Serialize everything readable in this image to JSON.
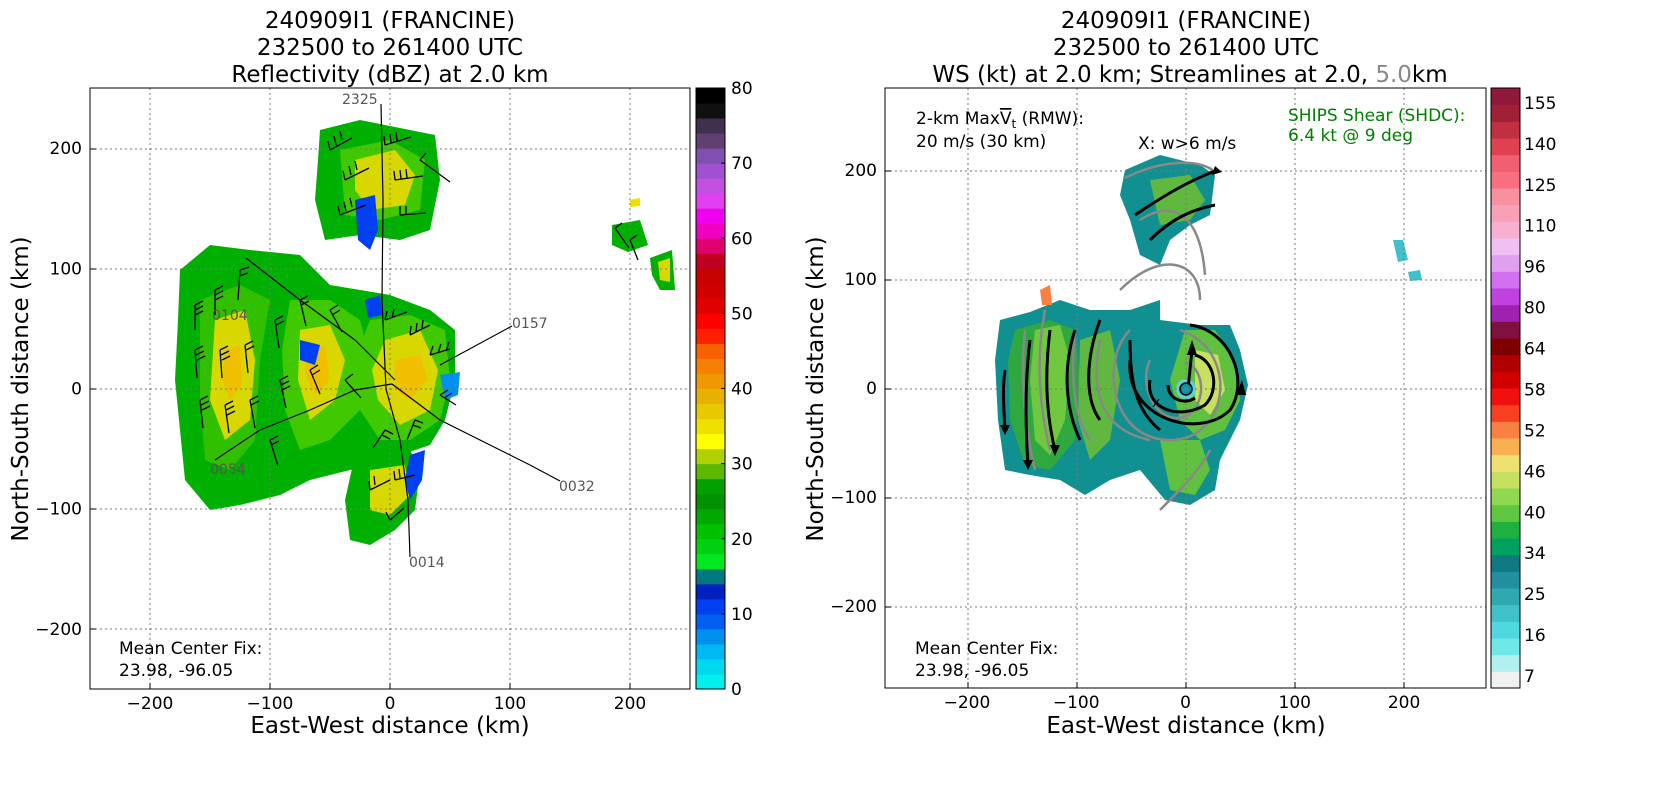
{
  "left_panel": {
    "title_line1": "240909I1 (FRANCINE)",
    "title_line2": "232500 to 261400 UTC",
    "title_line3": "Reflectivity (dBZ) at 2.0 km",
    "xlabel": "East-West distance (km)",
    "ylabel": "North-South distance (km)",
    "fix_line1": "Mean Center Fix:",
    "fix_line2": "23.98, -96.05",
    "track_labels": [
      "2325",
      "0157",
      "0032",
      "0014",
      "0104",
      "0054"
    ]
  },
  "right_panel": {
    "title_line1": "240909I1 (FRANCINE)",
    "title_line2": "232500 to 261400 UTC",
    "title_line3_a": "WS (kt) at 2.0 km; Streamlines at 2.0, ",
    "title_line3_b": "5.0",
    "title_line3_c": "km",
    "xlabel": "East-West distance (km)",
    "ylabel": "North-South distance (km)",
    "vt_line1_a": "2-km Max",
    "vt_line1_b": "V",
    "vt_line1_c": "t",
    "vt_line1_d": " (RMW):",
    "vt_line2": "20 m/s (30 km)",
    "w_label": "X: w>6 m/s",
    "shear_line1": "SHIPS Shear (SHDC):",
    "shear_line2": "6.4 kt @ 9 deg",
    "fix_line1": "Mean Center Fix:",
    "fix_line2": "23.98, -96.05"
  },
  "colors": {
    "shear_text": "#008000",
    "track_label": "#555555",
    "streamline_2km": "#000000",
    "streamline_5km": "#888888"
  },
  "chart_data": [
    {
      "type": "heatmap",
      "title": "240909I1 (FRANCINE) 232500 to 261400 UTC Reflectivity (dBZ) at 2.0 km",
      "xlabel": "East-West distance (km)",
      "ylabel": "North-South distance (km)",
      "xlim": [
        -250,
        250
      ],
      "ylim": [
        -250,
        250
      ],
      "xticks": [
        -200,
        -100,
        0,
        100,
        200
      ],
      "yticks": [
        -200,
        -100,
        0,
        100,
        200
      ],
      "grid": true,
      "colorbar": {
        "ticks": [
          0,
          10,
          20,
          30,
          40,
          50,
          60,
          70,
          80
        ],
        "levels": [
          "#00f0f0",
          "#00d8f0",
          "#00b8f0",
          "#0090f0",
          "#0060f0",
          "#0040f0",
          "#0020c0",
          "#007880",
          "#00e820",
          "#00d010",
          "#00c000",
          "#00a800",
          "#009000",
          "#00a000",
          "#5cb800",
          "#b0d000",
          "#ffff00",
          "#f0e000",
          "#e8c800",
          "#e8b000",
          "#f09800",
          "#f88000",
          "#f86000",
          "#ff2000",
          "#ff0000",
          "#e00000",
          "#d00000",
          "#c80000",
          "#c00020",
          "#e00070",
          "#f000c0",
          "#f000f0",
          "#e040f0",
          "#c050e0",
          "#a050d0",
          "#8050b0",
          "#604070",
          "#403050",
          "#101010",
          "#000000"
        ]
      },
      "fix": [
        23.98,
        -96.05
      ]
    },
    {
      "type": "heatmap",
      "title": "240909I1 (FRANCINE) 232500 to 261400 UTC WS (kt) at 2.0 km; Streamlines at 2.0, 5.0km",
      "xlabel": "East-West distance (km)",
      "ylabel": "North-South distance (km)",
      "xlim": [
        -275,
        275
      ],
      "ylim": [
        -275,
        275
      ],
      "xticks": [
        -200,
        -100,
        0,
        100,
        200
      ],
      "yticks": [
        -200,
        -100,
        0,
        100,
        200
      ],
      "grid": true,
      "colorbar": {
        "ticks": [
          7,
          16,
          25,
          34,
          40,
          46,
          52,
          58,
          64,
          80,
          96,
          110,
          125,
          140,
          155
        ],
        "levels": [
          "#f0f0f0",
          "#b0f0f0",
          "#70e8e8",
          "#50d8e0",
          "#40c0c8",
          "#30a8b0",
          "#2090a0",
          "#107880",
          "#00a060",
          "#20b040",
          "#60c840",
          "#90d850",
          "#c8e060",
          "#f0e070",
          "#f8b050",
          "#f88040",
          "#f84020",
          "#f01010",
          "#d00000",
          "#b00000",
          "#800000",
          "#801040",
          "#a020b0",
          "#c040e0",
          "#d070f0",
          "#e0a0f0",
          "#f0c0f0",
          "#f8b0d0",
          "#f8a0b8",
          "#f890a0",
          "#f87080",
          "#f06070",
          "#e04050",
          "#c03040",
          "#a02038",
          "#901838"
        ],
        "units": "kt"
      },
      "max_vt_ms": 20,
      "rmw_km": 30,
      "w_threshold_ms": 6,
      "ships_shear_kt": 6.4,
      "ships_shear_deg": 9,
      "fix": [
        23.98,
        -96.05
      ]
    }
  ]
}
